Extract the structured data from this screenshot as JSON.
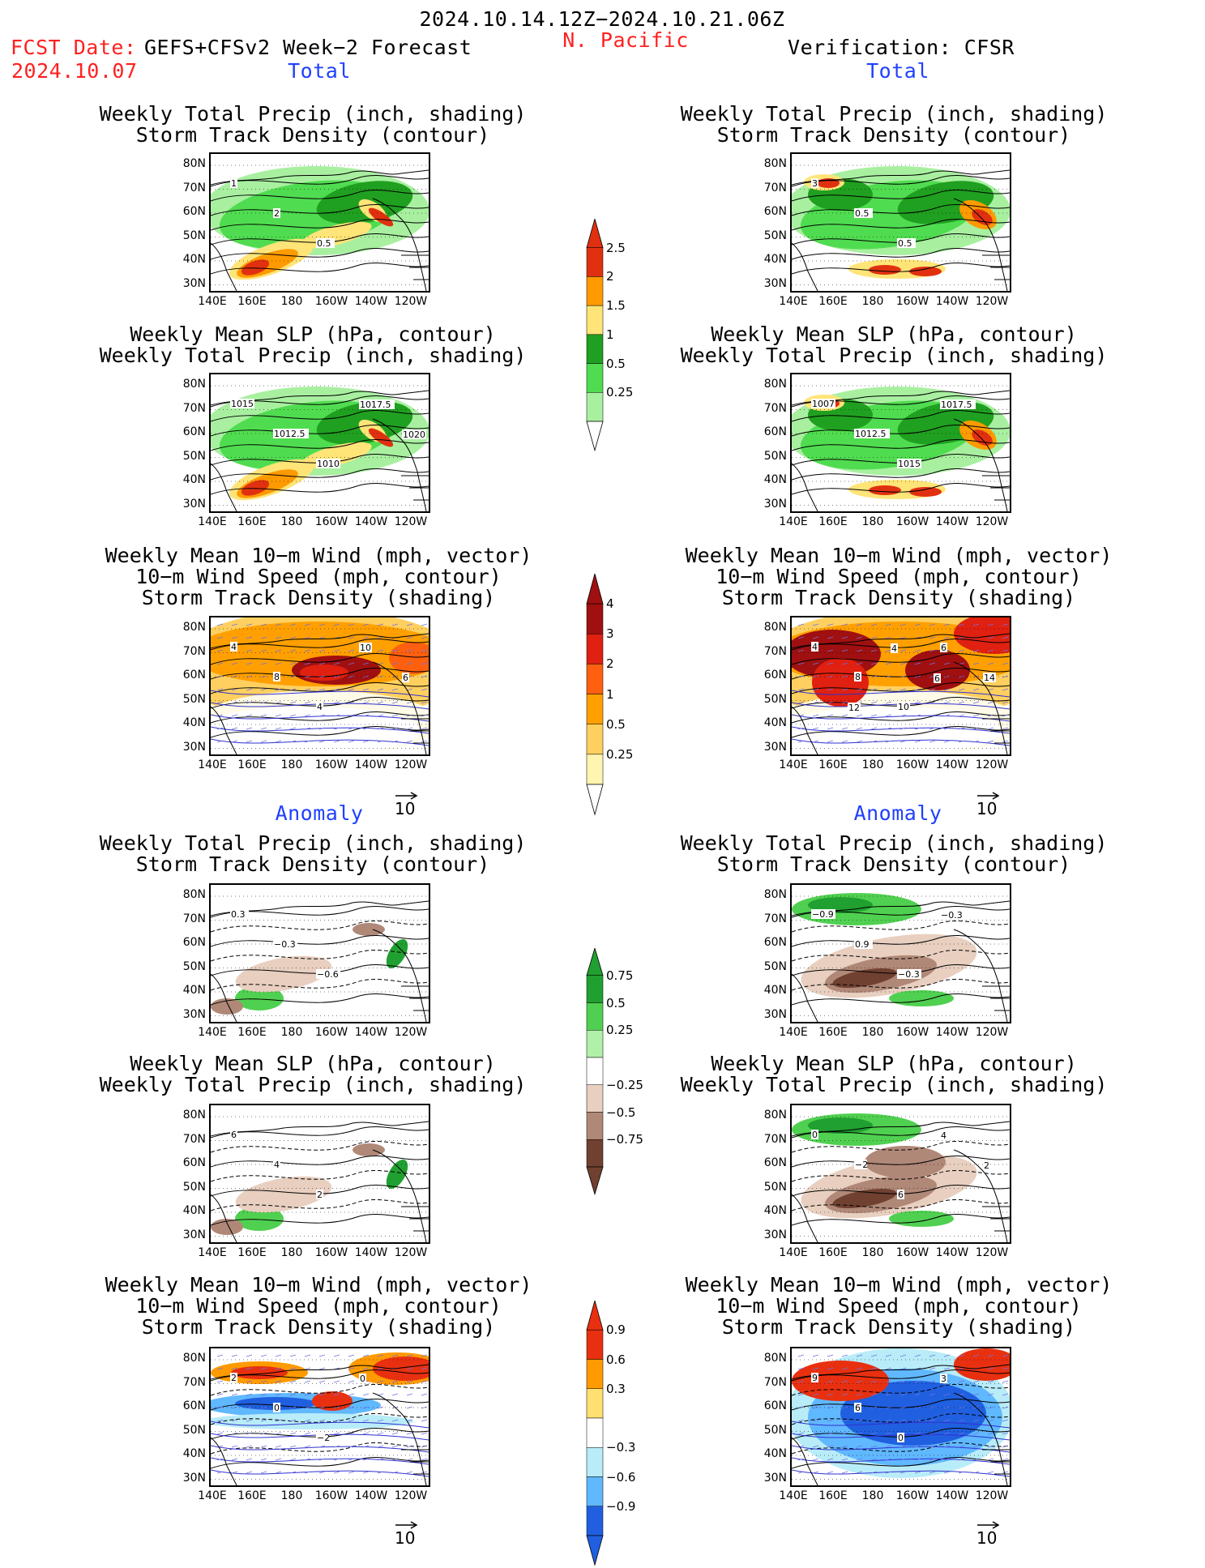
{
  "header": {
    "period": "2024.10.14.12Z−2024.10.21.06Z",
    "region": "N. Pacific",
    "fcst_label": "FCST Date:",
    "fcst_model": "GEFS+CFSv2 Week−2 Forecast",
    "fcst_date": "2024.10.07",
    "verification": "Verification: CFSR"
  },
  "sections": {
    "total": "Total",
    "anomaly": "Anomaly"
  },
  "titles": {
    "precip_storm": "Weekly Total Precip (inch, shading)\nStorm Track Density (contour)",
    "slp_precip": "Weekly Mean SLP (hPa, contour)\nWeekly Total Precip (inch, shading)",
    "wind_storm": "Weekly Mean 10−m Wind (mph, vector)\n10−m Wind Speed (mph, contour)\nStorm Track Density (shading)"
  },
  "axes": {
    "lat_ticks": [
      "80N",
      "70N",
      "60N",
      "50N",
      "40N",
      "30N"
    ],
    "lon_ticks": [
      "140E",
      "160E",
      "180",
      "160W",
      "140W",
      "120W"
    ]
  },
  "vector_ref": "10",
  "colorbars": {
    "precip_total": {
      "labels": [
        "2.5",
        "2",
        "1.5",
        "1",
        "0.5",
        "0.25"
      ],
      "colors": [
        "#e03010",
        "#ff9a00",
        "#ffe478",
        "#20a020",
        "#50dc50",
        "#a8f0a0"
      ]
    },
    "storm_total": {
      "labels": [
        "4",
        "3",
        "2",
        "1",
        "0.5",
        "0.25"
      ],
      "colors": [
        "#a01010",
        "#e02010",
        "#ff6010",
        "#ffa000",
        "#ffd060",
        "#fff4b0"
      ]
    },
    "precip_anom": {
      "labels": [
        "0.75",
        "0.5",
        "0.25",
        "−0.25",
        "−0.5",
        "−0.75"
      ],
      "colors": [
        "#20a030",
        "#50d050",
        "#b0f0a8",
        "#ffffff",
        "#e8cfc0",
        "#b08878",
        "#704030"
      ]
    },
    "storm_anom": {
      "labels": [
        "0.9",
        "0.6",
        "0.3",
        "−0.3",
        "−0.6",
        "−0.9"
      ],
      "colors": [
        "#e83010",
        "#ff9a00",
        "#ffe070",
        "#ffffff",
        "#b8ecf8",
        "#60b8ff",
        "#2060e0"
      ]
    }
  },
  "contour_labels": {
    "fc_precip_total": [
      "1",
      "2",
      "0.5"
    ],
    "fc_slp_total": [
      "1015",
      "1012.5",
      "1010",
      "1017.5",
      "1020"
    ],
    "fc_wind_total": [
      "4",
      "8",
      "4",
      "10",
      "6"
    ],
    "obs_precip_total": [
      "3",
      "0.5",
      "0.5"
    ],
    "obs_slp_total": [
      "1007",
      "1012.5",
      "1015",
      "1017.5"
    ],
    "obs_wind_total": [
      "4",
      "8",
      "10",
      "6",
      "14",
      "12",
      "4",
      "6"
    ],
    "fc_precip_anom": [
      "0.3",
      "−0.3",
      "−0.6"
    ],
    "fc_slp_anom": [
      "6",
      "4",
      "2"
    ],
    "fc_wind_anom": [
      "2",
      "0",
      "−2",
      "0"
    ],
    "obs_precip_anom": [
      "−0.9",
      "0.9",
      "−0.3",
      "−0.3"
    ],
    "obs_slp_anom": [
      "0",
      "−2",
      "6",
      "4",
      "2"
    ],
    "obs_wind_anom": [
      "9",
      "6",
      "0",
      "3"
    ]
  }
}
